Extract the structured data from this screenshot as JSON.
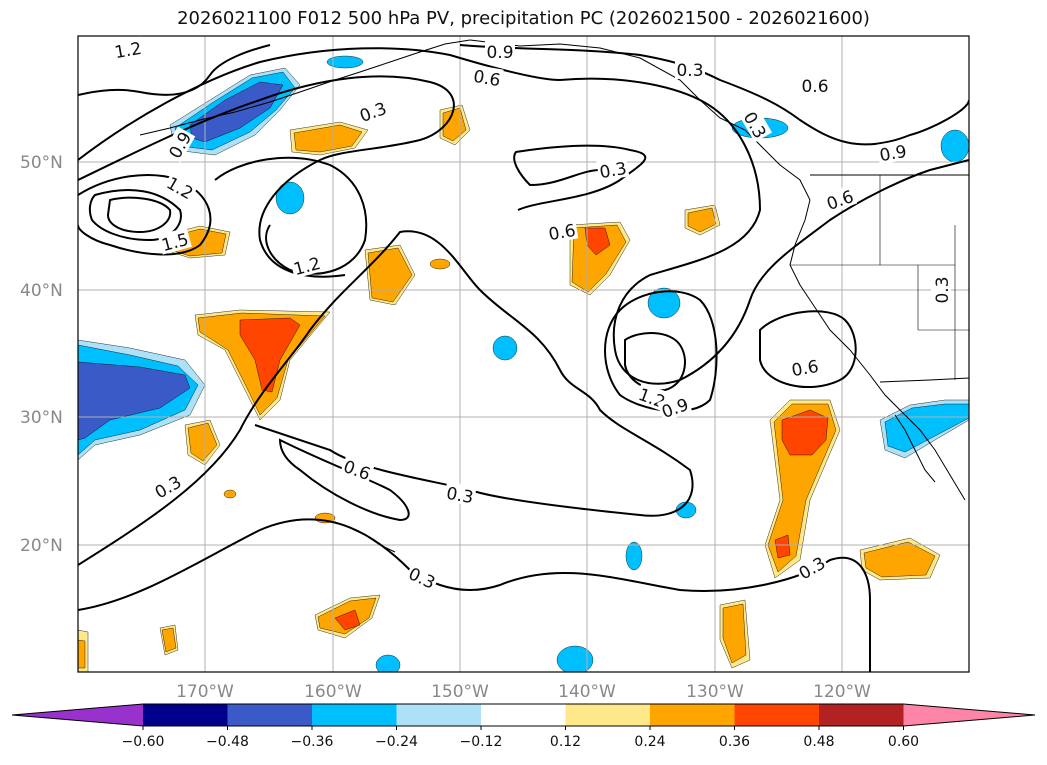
{
  "title": "2026021100 F012 500 hPa PV, precipitation PC (2026021500 - 2026021600)",
  "lat_labels": [
    "50°N",
    "40°N",
    "30°N",
    "20°N"
  ],
  "lon_labels": [
    "170°W",
    "160°W",
    "150°W",
    "140°W",
    "130°W",
    "120°W"
  ],
  "contour_labels": [
    "1.2",
    "0.9",
    "0.3",
    "0.6",
    "0.3",
    "0.6",
    "0.3",
    "0.9",
    "1.2",
    "1.5",
    "0.9",
    "0.6",
    "1.2",
    "0.6",
    "0.3",
    "0.6",
    "0.3",
    "1.2",
    "0.9",
    "0.6",
    "0.3",
    "0.3",
    "0.3",
    "0.3"
  ],
  "colorbar": {
    "tick_labels": [
      "−0.60",
      "−0.48",
      "−0.36",
      "−0.24",
      "−0.12",
      "0.12",
      "0.24",
      "0.36",
      "0.48",
      "0.60"
    ],
    "colors": [
      "#9932CC",
      "#00008B",
      "#3A5BC7",
      "#00BFFF",
      "#ADE1F8",
      "#FFFFFF",
      "#FFE88A",
      "#FFA500",
      "#FF4500",
      "#B22222",
      "#FF85A8"
    ]
  },
  "fill_colors": {
    "light_blue": "#ADE1F8",
    "blue": "#00BFFF",
    "dark_blue": "#3A5BC7",
    "yellow": "#FFE88A",
    "orange": "#FFA500",
    "red": "#FF4500"
  }
}
